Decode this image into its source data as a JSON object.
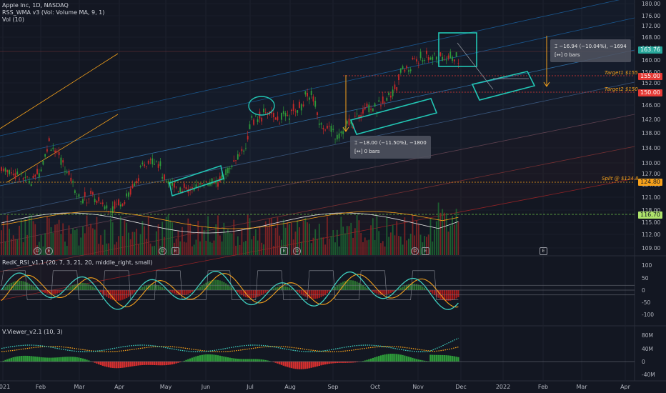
{
  "header": {
    "title": "Apple Inc, 1D, NASDAQ",
    "indicator1": "RSS_WMA v3 (Vol: Volume MA, 9, 1)",
    "indicator2": "Vol (10)"
  },
  "rsi_panel": {
    "title": "RedK_RSI_v1.1 (20, 7, 3, 21, 20, middle_right, small)"
  },
  "vviewer_panel": {
    "title": "V.Viewer_v2.1 (10, 3)"
  },
  "price_tags": {
    "current": "163.76",
    "t155": "155.00",
    "t150": "150.00",
    "split": "124.80",
    "vol_ma": "116.70"
  },
  "colors": {
    "bg": "#131722",
    "up": "#26a69a",
    "down": "#ef5350",
    "green_candle": "#2e9b3a",
    "red_candle": "#c62828",
    "orange": "#f7a21b",
    "teal": "#3fd0c0",
    "box": "#22c7b5"
  },
  "notes": {
    "target1": "Target1 $155",
    "target2": "Target2 $150",
    "split": "Split @ $124.8"
  },
  "measures": {
    "m1_line1": "−18.00 (−11.50%), −1800",
    "m1_line2": "0 bars",
    "m2_line1": "−16.94 (−10.04%), −1694",
    "m2_line2": "0 bars"
  },
  "chart_data": {
    "type": "candlestick",
    "x_ticks": [
      "2021",
      "Feb",
      "Mar",
      "Apr",
      "May",
      "Jun",
      "Jul",
      "Aug",
      "Sep",
      "Oct",
      "Nov",
      "Dec",
      "2022",
      "Feb",
      "Mar",
      "Apr"
    ],
    "price_ticks": [
      "180.00",
      "176.00",
      "172.00",
      "168.00",
      "164.00",
      "160.00",
      "156.00",
      "152.00",
      "150.00",
      "146.00",
      "142.00",
      "138.00",
      "134.00",
      "130.00",
      "127.00",
      "124.00",
      "121.00",
      "118.00",
      "115.00",
      "112.00",
      "109.00"
    ],
    "rsi_ticks": [
      "100",
      "50",
      "0",
      "-50",
      "-100"
    ],
    "vv_ticks": [
      "80M",
      "40M",
      "0",
      "-40M"
    ],
    "close_path": [
      [
        0,
        131
      ],
      [
        8,
        129
      ],
      [
        15,
        127
      ],
      [
        20,
        131
      ],
      [
        24,
        139
      ],
      [
        26,
        137
      ],
      [
        30,
        133
      ],
      [
        35,
        128
      ],
      [
        40,
        121
      ],
      [
        45,
        123
      ],
      [
        50,
        120
      ],
      [
        55,
        119
      ],
      [
        60,
        121
      ],
      [
        64,
        123
      ],
      [
        68,
        127
      ],
      [
        72,
        132
      ],
      [
        76,
        134
      ],
      [
        79,
        133
      ],
      [
        82,
        127
      ],
      [
        86,
        126
      ],
      [
        90,
        125
      ],
      [
        94,
        124
      ],
      [
        98,
        125
      ],
      [
        102,
        127
      ],
      [
        106,
        126
      ],
      [
        110,
        127
      ],
      [
        114,
        130
      ],
      [
        118,
        133
      ],
      [
        122,
        137
      ],
      [
        124,
        140
      ],
      [
        126,
        145
      ],
      [
        129,
        146
      ],
      [
        132,
        147
      ],
      [
        135,
        148
      ],
      [
        138,
        145
      ],
      [
        141,
        146
      ],
      [
        144,
        147
      ],
      [
        147,
        148
      ],
      [
        150,
        149
      ],
      [
        153,
        152
      ],
      [
        156,
        153
      ],
      [
        158,
        149
      ],
      [
        160,
        145
      ],
      [
        163,
        144
      ],
      [
        166,
        142
      ],
      [
        169,
        141
      ],
      [
        172,
        142
      ],
      [
        175,
        144
      ],
      [
        178,
        145
      ],
      [
        181,
        148
      ],
      [
        184,
        150
      ],
      [
        187,
        149
      ],
      [
        190,
        149
      ],
      [
        193,
        151
      ],
      [
        196,
        153
      ],
      [
        199,
        156
      ],
      [
        202,
        160
      ],
      [
        204,
        161
      ],
      [
        206,
        160
      ],
      [
        208,
        163.76
      ]
    ],
    "t_max": 320,
    "price_range": [
      107.5,
      181
    ]
  }
}
